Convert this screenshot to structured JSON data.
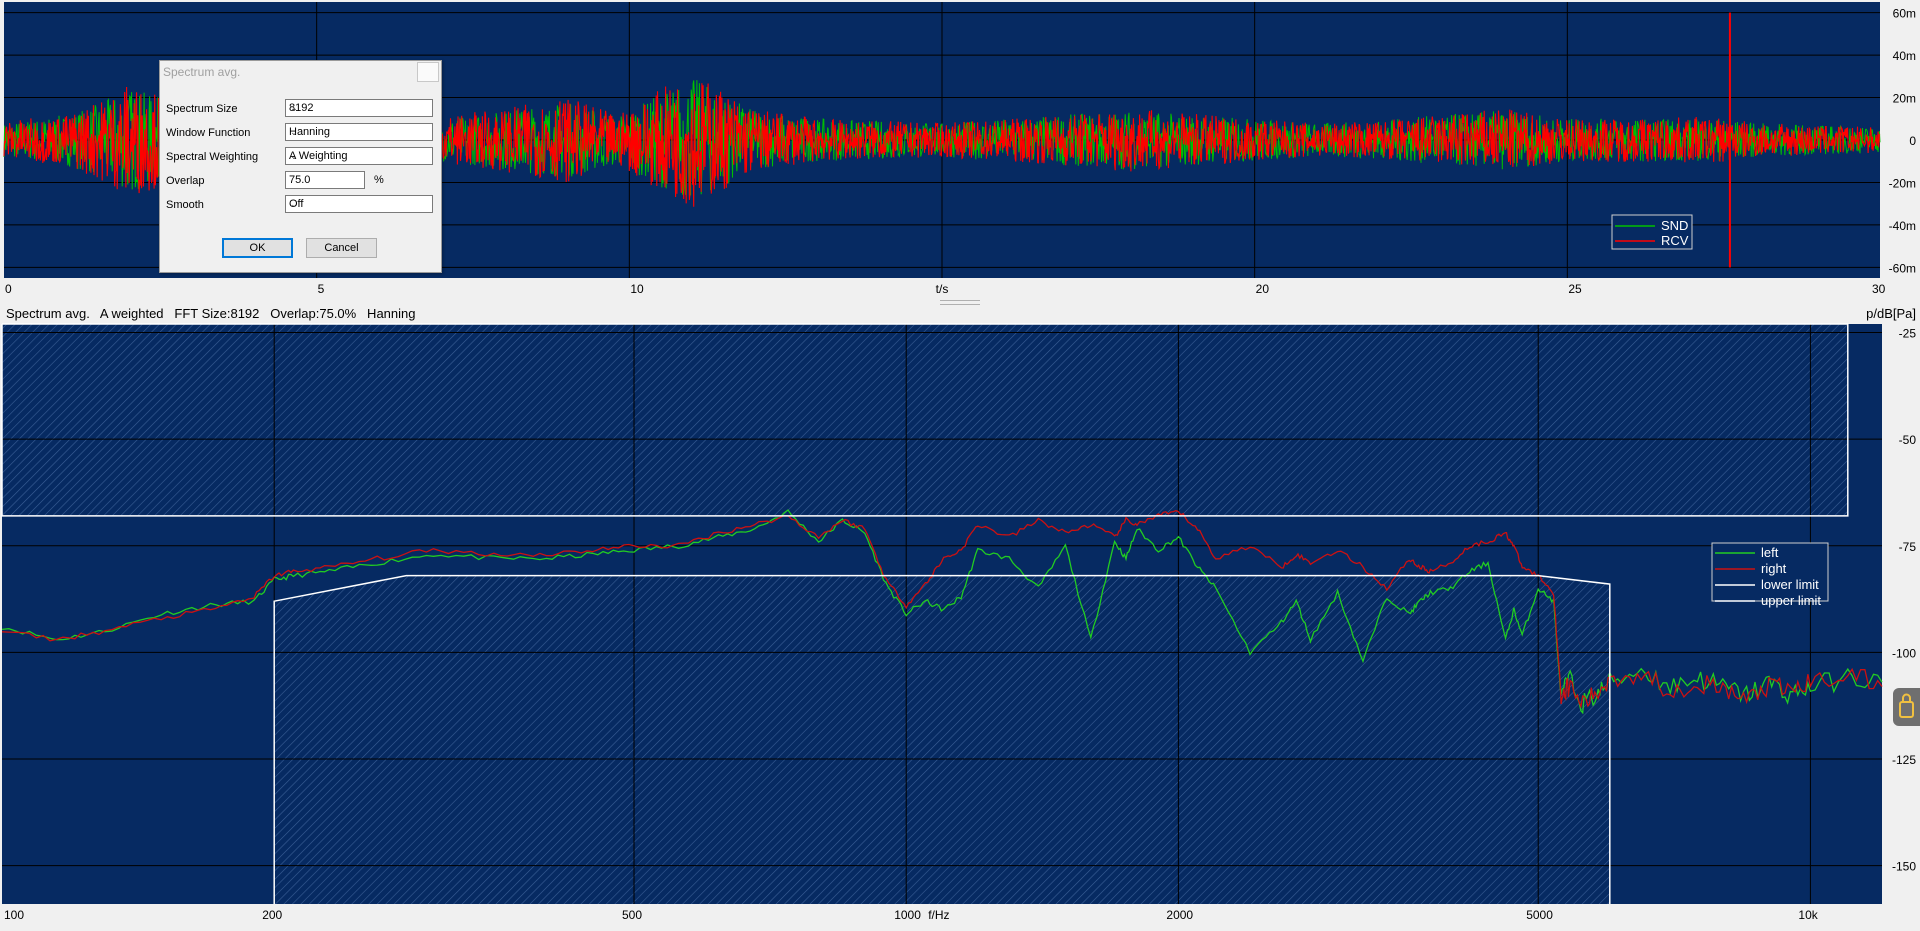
{
  "dialog": {
    "title": "Spectrum avg.",
    "fields": {
      "spectrum_size": {
        "label": "Spectrum Size",
        "value": "8192"
      },
      "window_function": {
        "label": "Window Function",
        "value": "Hanning"
      },
      "spectral_weighting": {
        "label": "Spectral Weighting",
        "value": "A Weighting"
      },
      "overlap": {
        "label": "Overlap",
        "value": "75.0",
        "unit": "%"
      },
      "smooth": {
        "label": "Smooth",
        "value": "Off"
      }
    },
    "ok_label": "OK",
    "cancel_label": "Cancel"
  },
  "status": {
    "left": "Spectrum avg.   A weighted   FFT Size:8192   Overlap:75.0%   Hanning",
    "unit": "p/dB[Pa]"
  },
  "colors": {
    "plot_bg": "#062a62",
    "grid": "#000000",
    "snd": "#00c000",
    "rcv": "#ff0000",
    "left": "#22cc22",
    "right": "#cc1111",
    "limit": "#ffffff"
  },
  "chart_data": [
    {
      "type": "line",
      "title": "",
      "xlabel": "t/s",
      "ylabel": "",
      "xlim": [
        0,
        30
      ],
      "ylim": [
        -65,
        65
      ],
      "x_ticks": [
        0,
        5,
        10,
        20,
        25,
        30
      ],
      "y_ticks": [
        60,
        40,
        20,
        0,
        -20,
        -40,
        -60
      ],
      "y_tick_labels": [
        "60m",
        "40m",
        "20m",
        "0",
        "-20m",
        "-40m",
        "-60m"
      ],
      "legend": {
        "position": "bottom-right",
        "entries": [
          "SND",
          "RCV"
        ]
      },
      "series": [
        {
          "name": "SND",
          "envelope_t": [
            0,
            1,
            1.6,
            2,
            2.5,
            3,
            5,
            7,
            8,
            9,
            9.8,
            10,
            10.5,
            11,
            11.5,
            12,
            13,
            15,
            17,
            18,
            20,
            21,
            22,
            23,
            24,
            25,
            27.5,
            28,
            30
          ],
          "envelope_amp": [
            8,
            12,
            18,
            25,
            20,
            6,
            4,
            10,
            14,
            18,
            12,
            14,
            22,
            30,
            22,
            14,
            10,
            8,
            12,
            14,
            10,
            8,
            9,
            12,
            14,
            10,
            10,
            8,
            6
          ]
        },
        {
          "name": "RCV",
          "envelope_t": [
            0,
            1,
            1.6,
            2,
            2.5,
            3,
            5,
            7,
            8,
            9,
            9.8,
            10,
            10.5,
            11,
            11.5,
            12,
            13,
            15,
            17,
            18,
            20,
            21,
            22,
            23,
            24,
            25,
            27.5,
            28,
            30
          ],
          "envelope_amp": [
            9,
            12,
            20,
            27,
            22,
            6,
            4,
            11,
            15,
            20,
            12,
            15,
            24,
            32,
            24,
            15,
            10,
            8,
            12,
            15,
            10,
            8,
            9,
            12,
            15,
            10,
            11,
            8,
            6
          ]
        }
      ],
      "spike": {
        "t": 27.6,
        "amplitude": 60
      }
    },
    {
      "type": "line",
      "title": "Spectrum avg.",
      "xlabel": "f/Hz",
      "ylabel": "p/dB[Pa]",
      "x_scale": "log",
      "xlim": [
        100,
        12000
      ],
      "ylim": [
        -159,
        -23
      ],
      "x_ticks": [
        100,
        200,
        500,
        1000,
        2000,
        5000,
        10000
      ],
      "x_tick_labels": [
        "100",
        "200",
        "500",
        "1000",
        "2000",
        "5000",
        "10k"
      ],
      "y_ticks": [
        -25,
        -50,
        -75,
        -100,
        -125,
        -150
      ],
      "legend": {
        "position": "right",
        "entries": [
          "left",
          "right",
          "lower limit",
          "upper limit"
        ]
      },
      "series": [
        {
          "name": "left",
          "x": [
            100,
            115,
            130,
            150,
            170,
            190,
            200,
            210,
            230,
            260,
            300,
            350,
            400,
            450,
            500,
            560,
            620,
            680,
            740,
            800,
            850,
            900,
            950,
            1000,
            1050,
            1100,
            1150,
            1200,
            1300,
            1400,
            1500,
            1600,
            1700,
            1750,
            1800,
            1900,
            2000,
            2100,
            2200,
            2400,
            2600,
            2700,
            2800,
            3000,
            3200,
            3400,
            3600,
            3700,
            3800,
            4000,
            4200,
            4400,
            4600,
            4700,
            4800,
            5000,
            5200,
            5300,
            5400,
            5600,
            5800,
            6000,
            6500,
            7000,
            7500,
            8000,
            8500,
            9000,
            9500,
            10000,
            11000,
            12000
          ],
          "y": [
            -94,
            -97,
            -95,
            -91,
            -89,
            -88,
            -83,
            -82,
            -81,
            -79,
            -77,
            -78,
            -78,
            -77,
            -76,
            -75,
            -73,
            -71,
            -67,
            -74,
            -69,
            -72,
            -84,
            -91,
            -88,
            -90,
            -87,
            -76,
            -78,
            -85,
            -75,
            -97,
            -74,
            -78,
            -71,
            -76,
            -73,
            -80,
            -85,
            -100,
            -93,
            -88,
            -97,
            -86,
            -102,
            -87,
            -91,
            -88,
            -86,
            -85,
            -81,
            -79,
            -97,
            -90,
            -96,
            -85,
            -88,
            -111,
            -106,
            -112,
            -110,
            -107,
            -104,
            -108,
            -106,
            -108,
            -110,
            -107,
            -110,
            -108,
            -106,
            -107
          ]
        },
        {
          "name": "right",
          "x": [
            100,
            115,
            130,
            150,
            170,
            190,
            200,
            210,
            230,
            260,
            300,
            350,
            400,
            450,
            500,
            560,
            620,
            680,
            740,
            800,
            850,
            900,
            950,
            1000,
            1050,
            1100,
            1150,
            1200,
            1300,
            1400,
            1500,
            1600,
            1700,
            1750,
            1800,
            1900,
            2000,
            2100,
            2200,
            2400,
            2600,
            2700,
            2800,
            3000,
            3200,
            3400,
            3600,
            3700,
            3800,
            4000,
            4200,
            4400,
            4600,
            4700,
            4800,
            5000,
            5200,
            5300,
            5400,
            5600,
            5800,
            6000,
            6500,
            7000,
            7500,
            8000,
            8500,
            9000,
            9500,
            10000,
            11000,
            12000
          ],
          "y": [
            -95,
            -97,
            -95,
            -92,
            -90,
            -87,
            -82,
            -81,
            -80,
            -78,
            -76,
            -77,
            -77,
            -76,
            -75,
            -75,
            -72,
            -70,
            -68,
            -73,
            -69,
            -71,
            -83,
            -89,
            -84,
            -78,
            -76,
            -70,
            -73,
            -69,
            -72,
            -70,
            -73,
            -69,
            -70,
            -68,
            -67,
            -71,
            -78,
            -75,
            -80,
            -77,
            -79,
            -76,
            -80,
            -85,
            -78,
            -80,
            -81,
            -79,
            -75,
            -74,
            -72,
            -75,
            -80,
            -82,
            -86,
            -110,
            -108,
            -112,
            -110,
            -106,
            -105,
            -109,
            -107,
            -109,
            -111,
            -108,
            -109,
            -107,
            -105,
            -108
          ]
        },
        {
          "name": "lower limit",
          "x": [
            200,
            200,
            280,
            5000,
            6000,
            6000
          ],
          "y": [
            -159,
            -88,
            -82,
            -82,
            -84,
            -159
          ]
        },
        {
          "name": "upper limit",
          "x": [
            100,
            11000,
            11000,
            100,
            100
          ],
          "y": [
            -23,
            -23,
            -68,
            -68,
            -23
          ]
        }
      ]
    }
  ]
}
